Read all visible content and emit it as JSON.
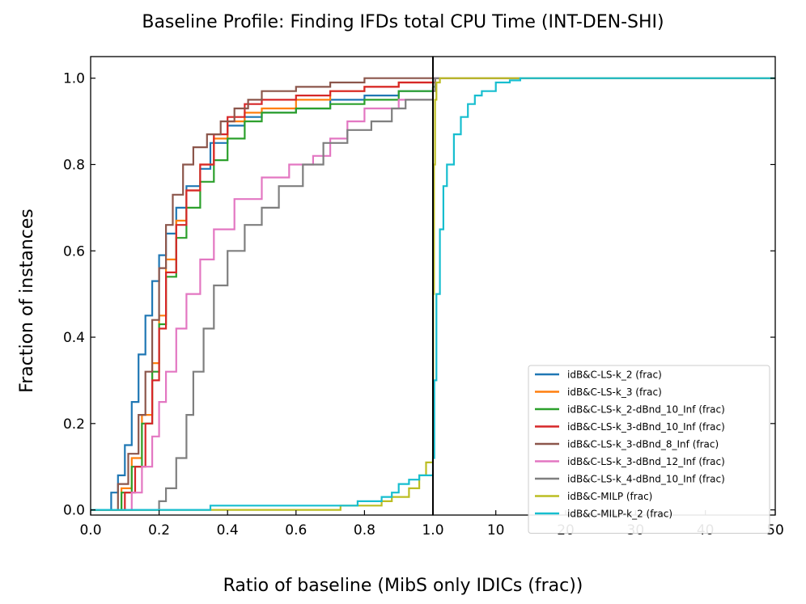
{
  "chart_data": {
    "type": "line",
    "title": "Baseline Profile: Finding IFDs total CPU Time (INT-DEN-SHI)",
    "xlabel": "Ratio of baseline (MibS only IDICs (frac))",
    "ylabel": "Fraction of instances",
    "ylim": [
      0,
      1.0
    ],
    "left_panel": {
      "xlim": [
        0.0,
        1.0
      ],
      "xticks": [
        "0.0",
        "0.2",
        "0.4",
        "0.6",
        "0.8",
        "1.0"
      ]
    },
    "right_panel": {
      "xlim": [
        1.0,
        50
      ],
      "xticks": [
        "1.0",
        "10",
        "20",
        "30",
        "40",
        "50"
      ]
    },
    "yticks": [
      "0.0",
      "0.2",
      "0.4",
      "0.6",
      "0.8",
      "1.0"
    ],
    "legend_position": "lower-right",
    "series": [
      {
        "name": "idB&C-LS-k_2 (frac)",
        "color": "#1f77b4",
        "left": [
          [
            0.0,
            0.0
          ],
          [
            0.03,
            0.0
          ],
          [
            0.06,
            0.04
          ],
          [
            0.08,
            0.08
          ],
          [
            0.1,
            0.15
          ],
          [
            0.12,
            0.25
          ],
          [
            0.14,
            0.36
          ],
          [
            0.16,
            0.45
          ],
          [
            0.18,
            0.53
          ],
          [
            0.2,
            0.59
          ],
          [
            0.22,
            0.64
          ],
          [
            0.25,
            0.7
          ],
          [
            0.28,
            0.75
          ],
          [
            0.32,
            0.79
          ],
          [
            0.35,
            0.85
          ],
          [
            0.4,
            0.89
          ],
          [
            0.45,
            0.91
          ],
          [
            0.5,
            0.92
          ],
          [
            0.6,
            0.93
          ],
          [
            0.7,
            0.95
          ],
          [
            0.8,
            0.96
          ],
          [
            0.9,
            0.97
          ],
          [
            1.0,
            0.98
          ]
        ],
        "right": [
          [
            1.0,
            0.98
          ],
          [
            1.3,
            1.0
          ],
          [
            50,
            1.0
          ]
        ]
      },
      {
        "name": "idB&C-LS-k_3 (frac)",
        "color": "#ff7f0e",
        "left": [
          [
            0.0,
            0.0
          ],
          [
            0.06,
            0.0
          ],
          [
            0.09,
            0.05
          ],
          [
            0.12,
            0.12
          ],
          [
            0.15,
            0.22
          ],
          [
            0.18,
            0.34
          ],
          [
            0.2,
            0.45
          ],
          [
            0.22,
            0.58
          ],
          [
            0.25,
            0.67
          ],
          [
            0.28,
            0.74
          ],
          [
            0.32,
            0.8
          ],
          [
            0.36,
            0.86
          ],
          [
            0.4,
            0.9
          ],
          [
            0.45,
            0.92
          ],
          [
            0.5,
            0.93
          ],
          [
            0.6,
            0.95
          ],
          [
            0.7,
            0.97
          ],
          [
            0.8,
            0.98
          ],
          [
            0.9,
            0.99
          ],
          [
            1.0,
            0.99
          ]
        ],
        "right": [
          [
            1.0,
            0.99
          ],
          [
            1.3,
            1.0
          ],
          [
            50,
            1.0
          ]
        ]
      },
      {
        "name": "idB&C-LS-k_2-dBnd_10_Inf (frac)",
        "color": "#2ca02c",
        "left": [
          [
            0.0,
            0.0
          ],
          [
            0.06,
            0.0
          ],
          [
            0.09,
            0.04
          ],
          [
            0.12,
            0.1
          ],
          [
            0.15,
            0.2
          ],
          [
            0.18,
            0.32
          ],
          [
            0.2,
            0.43
          ],
          [
            0.22,
            0.54
          ],
          [
            0.25,
            0.63
          ],
          [
            0.28,
            0.7
          ],
          [
            0.32,
            0.76
          ],
          [
            0.36,
            0.81
          ],
          [
            0.4,
            0.86
          ],
          [
            0.45,
            0.9
          ],
          [
            0.5,
            0.92
          ],
          [
            0.6,
            0.93
          ],
          [
            0.7,
            0.94
          ],
          [
            0.8,
            0.95
          ],
          [
            0.9,
            0.97
          ],
          [
            1.0,
            0.98
          ]
        ],
        "right": [
          [
            1.0,
            0.98
          ],
          [
            1.3,
            1.0
          ],
          [
            50,
            1.0
          ]
        ]
      },
      {
        "name": "idB&C-LS-k_3-dBnd_10_Inf (frac)",
        "color": "#d62728",
        "left": [
          [
            0.0,
            0.0
          ],
          [
            0.07,
            0.0
          ],
          [
            0.1,
            0.04
          ],
          [
            0.13,
            0.1
          ],
          [
            0.16,
            0.2
          ],
          [
            0.18,
            0.3
          ],
          [
            0.2,
            0.42
          ],
          [
            0.22,
            0.55
          ],
          [
            0.25,
            0.66
          ],
          [
            0.28,
            0.74
          ],
          [
            0.32,
            0.8
          ],
          [
            0.36,
            0.87
          ],
          [
            0.4,
            0.91
          ],
          [
            0.45,
            0.94
          ],
          [
            0.5,
            0.95
          ],
          [
            0.6,
            0.96
          ],
          [
            0.7,
            0.97
          ],
          [
            0.8,
            0.98
          ],
          [
            0.9,
            0.99
          ],
          [
            1.0,
            0.99
          ]
        ],
        "right": [
          [
            1.0,
            0.99
          ],
          [
            1.3,
            1.0
          ],
          [
            50,
            1.0
          ]
        ]
      },
      {
        "name": "idB&C-LS-k_3-dBnd_8_Inf (frac)",
        "color": "#8c564b",
        "left": [
          [
            0.0,
            0.0
          ],
          [
            0.05,
            0.0
          ],
          [
            0.08,
            0.06
          ],
          [
            0.11,
            0.13
          ],
          [
            0.14,
            0.22
          ],
          [
            0.16,
            0.32
          ],
          [
            0.18,
            0.44
          ],
          [
            0.2,
            0.56
          ],
          [
            0.22,
            0.66
          ],
          [
            0.24,
            0.73
          ],
          [
            0.27,
            0.8
          ],
          [
            0.3,
            0.84
          ],
          [
            0.34,
            0.87
          ],
          [
            0.38,
            0.9
          ],
          [
            0.42,
            0.93
          ],
          [
            0.46,
            0.95
          ],
          [
            0.5,
            0.97
          ],
          [
            0.6,
            0.98
          ],
          [
            0.7,
            0.99
          ],
          [
            0.8,
            1.0
          ],
          [
            1.0,
            1.0
          ]
        ],
        "right": [
          [
            1.0,
            1.0
          ],
          [
            50,
            1.0
          ]
        ]
      },
      {
        "name": "idB&C-LS-k_3-dBnd_12_Inf (frac)",
        "color": "#e377c2",
        "left": [
          [
            0.0,
            0.0
          ],
          [
            0.09,
            0.0
          ],
          [
            0.12,
            0.04
          ],
          [
            0.15,
            0.1
          ],
          [
            0.18,
            0.17
          ],
          [
            0.2,
            0.25
          ],
          [
            0.22,
            0.32
          ],
          [
            0.25,
            0.42
          ],
          [
            0.28,
            0.5
          ],
          [
            0.32,
            0.58
          ],
          [
            0.36,
            0.65
          ],
          [
            0.42,
            0.72
          ],
          [
            0.5,
            0.77
          ],
          [
            0.58,
            0.8
          ],
          [
            0.65,
            0.82
          ],
          [
            0.7,
            0.86
          ],
          [
            0.75,
            0.9
          ],
          [
            0.8,
            0.93
          ],
          [
            0.9,
            0.95
          ],
          [
            1.0,
            0.97
          ]
        ],
        "right": [
          [
            1.0,
            0.97
          ],
          [
            1.3,
            1.0
          ],
          [
            50,
            1.0
          ]
        ]
      },
      {
        "name": "idB&C-LS-k_4-dBnd_10_Inf (frac)",
        "color": "#7f7f7f",
        "left": [
          [
            0.0,
            0.0
          ],
          [
            0.15,
            0.0
          ],
          [
            0.2,
            0.02
          ],
          [
            0.22,
            0.05
          ],
          [
            0.25,
            0.12
          ],
          [
            0.28,
            0.22
          ],
          [
            0.3,
            0.32
          ],
          [
            0.33,
            0.42
          ],
          [
            0.36,
            0.52
          ],
          [
            0.4,
            0.6
          ],
          [
            0.45,
            0.66
          ],
          [
            0.5,
            0.7
          ],
          [
            0.55,
            0.75
          ],
          [
            0.62,
            0.8
          ],
          [
            0.68,
            0.85
          ],
          [
            0.75,
            0.88
          ],
          [
            0.82,
            0.9
          ],
          [
            0.88,
            0.93
          ],
          [
            0.92,
            0.95
          ],
          [
            1.0,
            0.97
          ]
        ],
        "right": [
          [
            1.0,
            0.97
          ],
          [
            1.3,
            1.0
          ],
          [
            50,
            1.0
          ]
        ]
      },
      {
        "name": "idB&C-MILP (frac)",
        "color": "#bcbd22",
        "left": [
          [
            0.0,
            0.0
          ],
          [
            0.72,
            0.0
          ],
          [
            0.73,
            0.01
          ],
          [
            0.8,
            0.01
          ],
          [
            0.85,
            0.02
          ],
          [
            0.88,
            0.03
          ],
          [
            0.93,
            0.05
          ],
          [
            0.96,
            0.08
          ],
          [
            0.98,
            0.11
          ],
          [
            1.0,
            0.14
          ]
        ],
        "right": [
          [
            1.0,
            0.14
          ],
          [
            1.05,
            0.5
          ],
          [
            1.15,
            0.8
          ],
          [
            1.3,
            0.95
          ],
          [
            1.5,
            0.99
          ],
          [
            2.0,
            1.0
          ],
          [
            50,
            1.0
          ]
        ]
      },
      {
        "name": "idB&C-MILP-k_2 (frac)",
        "color": "#17becf",
        "left": [
          [
            0.0,
            0.0
          ],
          [
            0.34,
            0.0
          ],
          [
            0.35,
            0.01
          ],
          [
            0.6,
            0.01
          ],
          [
            0.78,
            0.02
          ],
          [
            0.85,
            0.03
          ],
          [
            0.88,
            0.04
          ],
          [
            0.9,
            0.06
          ],
          [
            0.93,
            0.07
          ],
          [
            0.96,
            0.08
          ],
          [
            1.0,
            0.12
          ]
        ],
        "right": [
          [
            1.0,
            0.12
          ],
          [
            1.2,
            0.3
          ],
          [
            1.5,
            0.5
          ],
          [
            2.0,
            0.65
          ],
          [
            2.5,
            0.75
          ],
          [
            3.0,
            0.8
          ],
          [
            4.0,
            0.87
          ],
          [
            5.0,
            0.91
          ],
          [
            6.0,
            0.94
          ],
          [
            7.0,
            0.96
          ],
          [
            8.0,
            0.97
          ],
          [
            10.0,
            0.99
          ],
          [
            12.0,
            0.995
          ],
          [
            13.5,
            1.0
          ],
          [
            50,
            1.0
          ]
        ]
      }
    ]
  }
}
